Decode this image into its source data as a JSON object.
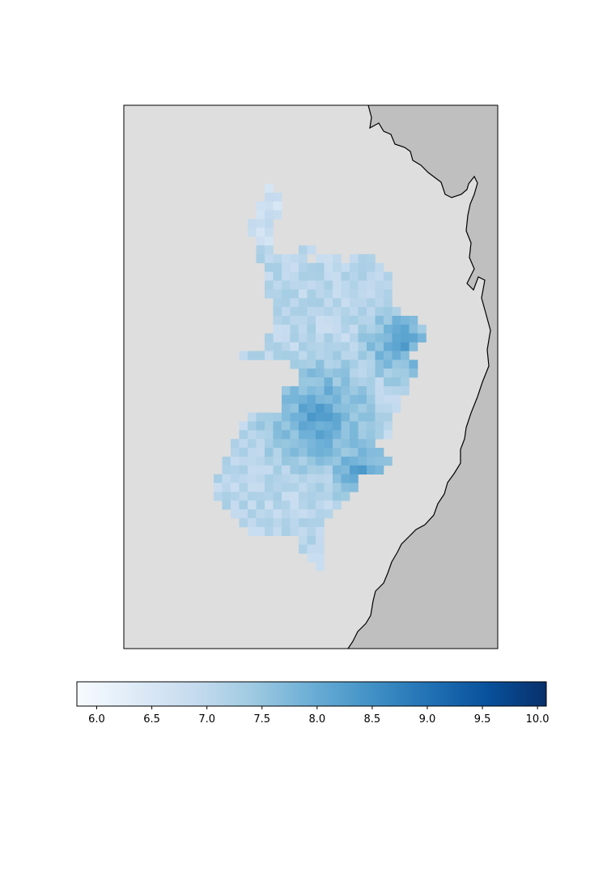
{
  "chart_data": {
    "type": "heatmap",
    "title": "",
    "xlabel": "",
    "ylabel": "",
    "colormap": "Blues",
    "colorbar": {
      "orientation": "horizontal",
      "placement": "bottom",
      "range": [
        5.82,
        10.08
      ],
      "ticks": [
        6.0,
        6.5,
        7.0,
        7.5,
        8.0,
        8.5,
        9.0,
        9.5,
        10.0
      ],
      "tick_labels": [
        "6.0",
        "6.5",
        "7.0",
        "7.5",
        "8.0",
        "8.5",
        "9.0",
        "9.5",
        "10.0"
      ]
    },
    "grid_resolution": {
      "cols": 44,
      "rows": 64
    },
    "value_range_observed": [
      6.1,
      8.6
    ],
    "land_color": "#bfbfbf",
    "background_color": "#dedede",
    "coastline_color": "#000000"
  }
}
